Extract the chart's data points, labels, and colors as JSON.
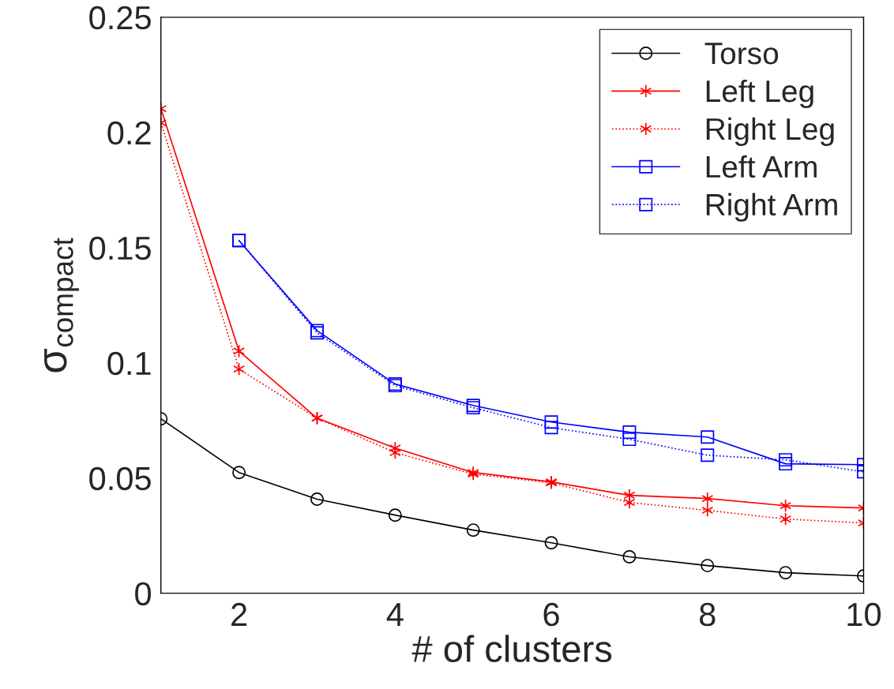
{
  "chart_data": {
    "type": "line",
    "xlabel": "# of clusters",
    "ylabel": "σ$_{compact}$",
    "x": [
      1,
      2,
      3,
      4,
      5,
      6,
      7,
      8,
      9,
      10
    ],
    "xlim": [
      1,
      10
    ],
    "xticks": [
      2,
      4,
      6,
      8,
      10
    ],
    "ylim": [
      0,
      0.25
    ],
    "yticks": [
      0,
      0.05,
      0.1,
      0.15,
      0.2,
      0.25
    ],
    "grid": false,
    "legend": "top right",
    "series": [
      {
        "name": "Torso",
        "color": "#000000",
        "marker": "circle",
        "line_style": "solid",
        "values": [
          0.0757,
          0.0524,
          0.0408,
          0.0339,
          0.0274,
          0.0219,
          0.0158,
          0.012,
          0.0089,
          0.0075
        ]
      },
      {
        "name": "Left Leg",
        "color": "#ff0000",
        "marker": "cross",
        "line_style": "solid",
        "values": [
          0.2103,
          0.1051,
          0.076,
          0.063,
          0.0524,
          0.0483,
          0.0425,
          0.0411,
          0.038,
          0.037
        ]
      },
      {
        "name": "Right Leg",
        "color": "#ff0000",
        "marker": "cross",
        "line_style": "dotted",
        "values": [
          0.2041,
          0.0973,
          0.076,
          0.061,
          0.0517,
          0.0479,
          0.0394,
          0.036,
          0.0322,
          0.0305
        ]
      },
      {
        "name": "Left Arm",
        "color": "#0000ff",
        "marker": "square",
        "line_style": "solid",
        "values": [
          null,
          0.1531,
          0.114,
          0.0908,
          0.0815,
          0.0743,
          0.0699,
          0.0678,
          0.0562,
          0.0558
        ]
      },
      {
        "name": "Right Arm",
        "color": "#0000ff",
        "marker": "square",
        "line_style": "dotted",
        "values": [
          null,
          0.1531,
          0.113,
          0.0901,
          0.0805,
          0.0719,
          0.0668,
          0.0599,
          0.0579,
          0.0527
        ]
      }
    ]
  }
}
